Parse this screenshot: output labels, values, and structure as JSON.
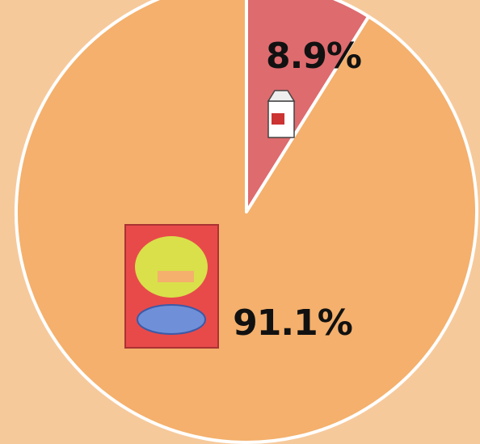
{
  "chart_data": {
    "type": "pie",
    "values": [
      8.9,
      91.1
    ],
    "value_labels": [
      "8.9%",
      "91.1%"
    ],
    "colors": [
      "#de6b6e",
      "#f4b06c"
    ]
  }
}
